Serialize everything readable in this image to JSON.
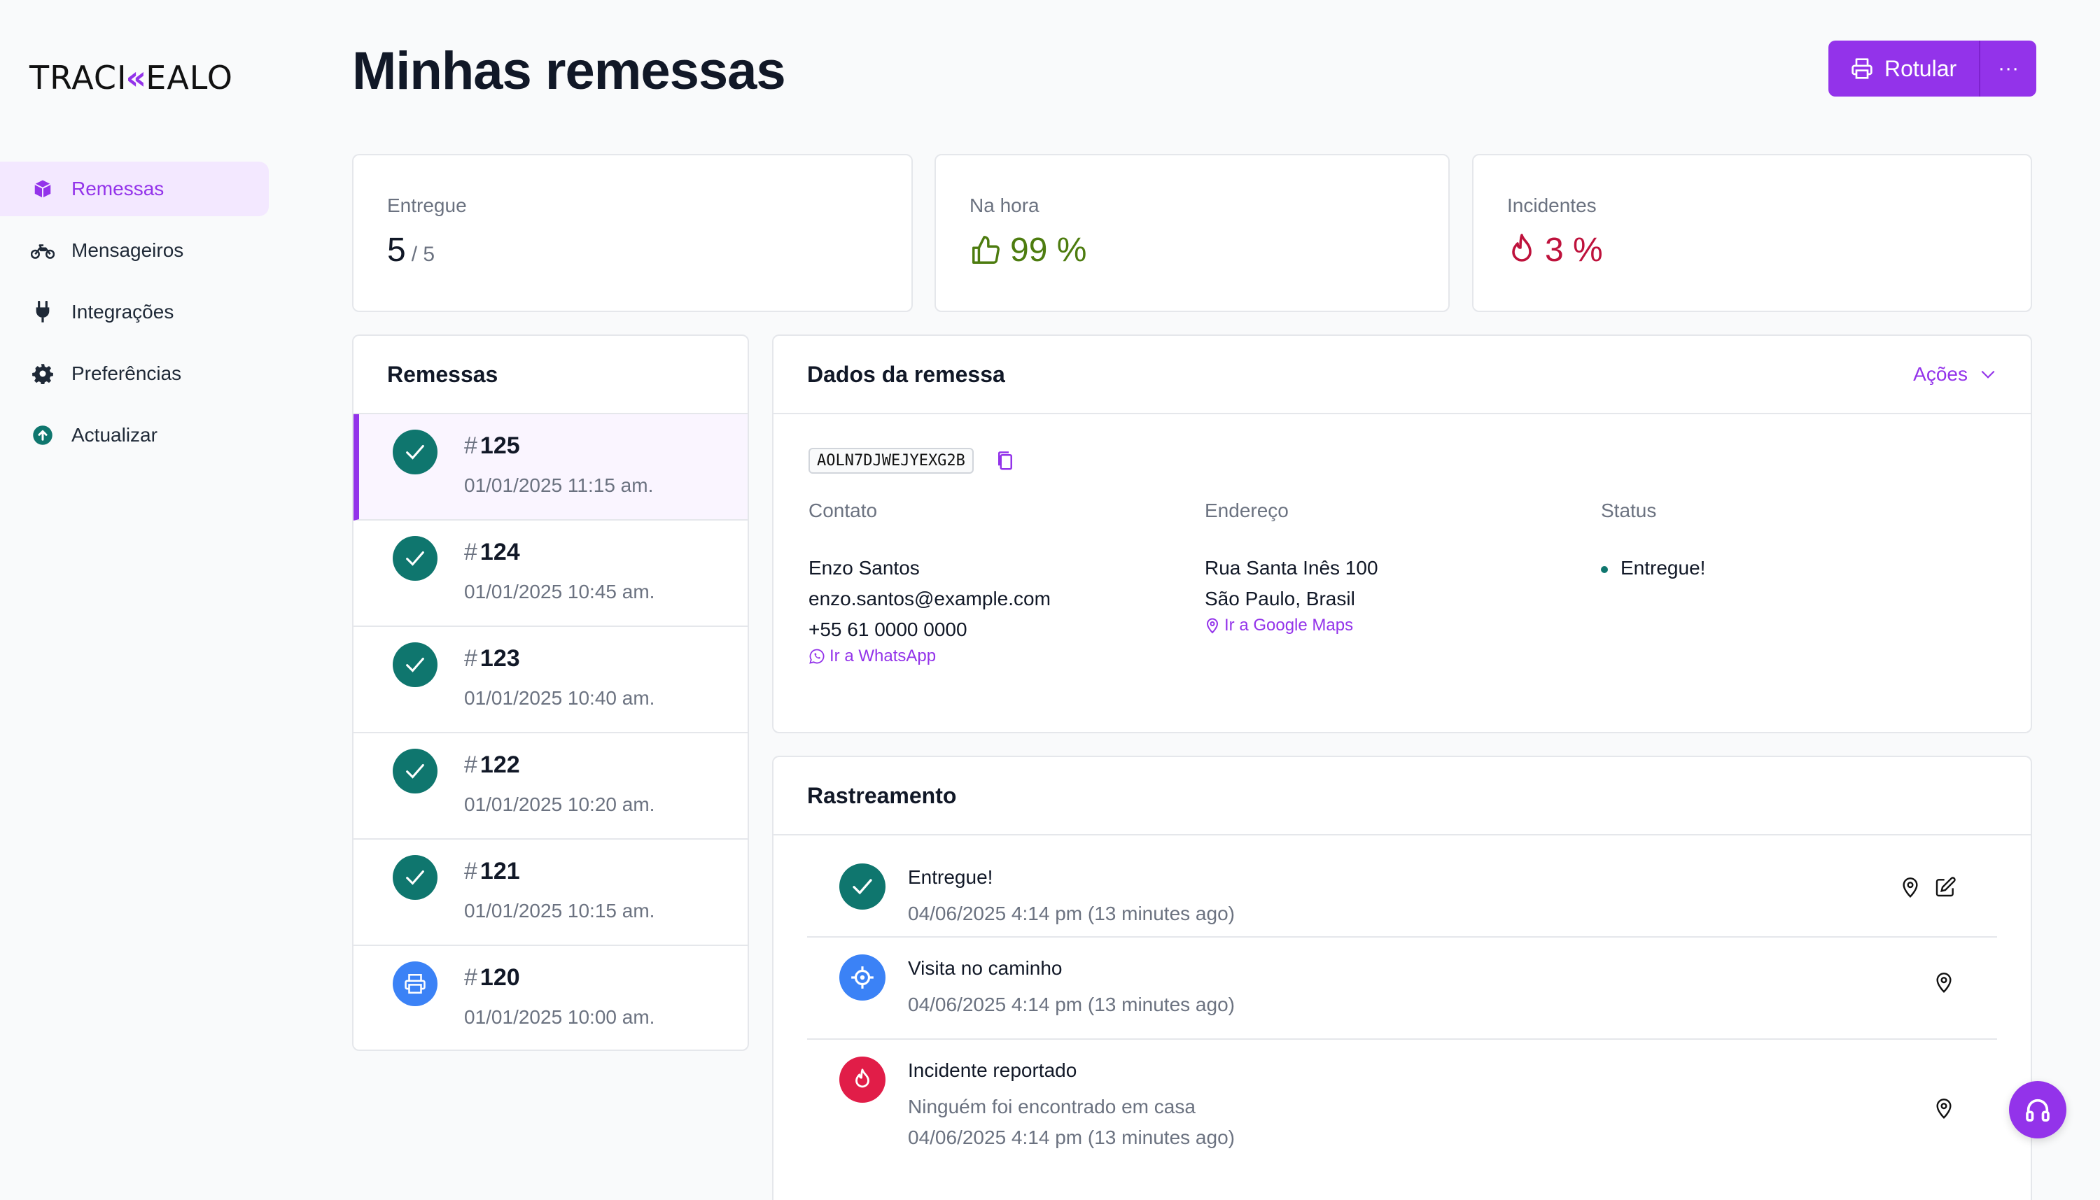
{
  "brand": {
    "logo_left": "TRACI",
    "logo_chevron": "«",
    "logo_right": "EALO"
  },
  "sidebar": {
    "items": [
      {
        "label": "Remessas",
        "icon": "box-icon",
        "active": true
      },
      {
        "label": "Mensageiros",
        "icon": "motorcycle-icon"
      },
      {
        "label": "Integrações",
        "icon": "plug-icon"
      },
      {
        "label": "Preferências",
        "icon": "gear-icon"
      },
      {
        "label": "Actualizar",
        "icon": "upload-circle-icon"
      }
    ]
  },
  "header": {
    "title": "Minhas remessas",
    "primary_button": "Rotular",
    "more_button": "···"
  },
  "stats": {
    "delivered": {
      "label": "Entregue",
      "value": "5",
      "total": "/ 5"
    },
    "on_time": {
      "label": "Na hora",
      "value": "99 %"
    },
    "incidents": {
      "label": "Incidentes",
      "value": "3 %"
    }
  },
  "shipments": {
    "title": "Remessas",
    "items": [
      {
        "number": "125",
        "date": "01/01/2025 11:15 am.",
        "status": "delivered"
      },
      {
        "number": "124",
        "date": "01/01/2025 10:45 am.",
        "status": "delivered"
      },
      {
        "number": "123",
        "date": "01/01/2025 10:40 am.",
        "status": "delivered"
      },
      {
        "number": "122",
        "date": "01/01/2025 10:20 am.",
        "status": "delivered"
      },
      {
        "number": "121",
        "date": "01/01/2025 10:15 am.",
        "status": "delivered"
      },
      {
        "number": "120",
        "date": "01/01/2025 10:00 am.",
        "status": "labeled"
      }
    ]
  },
  "details": {
    "title": "Dados da remessa",
    "actions_label": "Ações",
    "code": "AOLN7DJWEJYEXG2B",
    "contact": {
      "label": "Contato",
      "name": "Enzo Santos",
      "email": "enzo.santos@example.com",
      "phone": "+55 61 0000 0000",
      "link": "Ir a WhatsApp"
    },
    "address": {
      "label": "Endereço",
      "line1": "Rua Santa Inês 100",
      "line2": "São Paulo, Brasil",
      "link": "Ir a Google Maps"
    },
    "status": {
      "label": "Status",
      "value": "Entregue!"
    }
  },
  "tracking": {
    "title": "Rastreamento",
    "events": [
      {
        "title": "Entregue!",
        "time": "04/06/2025 4:14 pm (13 minutes ago)"
      },
      {
        "title": "Visita no caminho",
        "time": "04/06/2025 4:14 pm (13 minutes ago)"
      },
      {
        "title": "Incidente reportado",
        "note": "Ninguém foi encontrado em casa",
        "time": "04/06/2025 4:14 pm (13 minutes ago)"
      }
    ]
  },
  "colors": {
    "accent": "#9333ea",
    "success": "#0f766e",
    "info": "#3b82f6",
    "danger": "#e11d48"
  }
}
